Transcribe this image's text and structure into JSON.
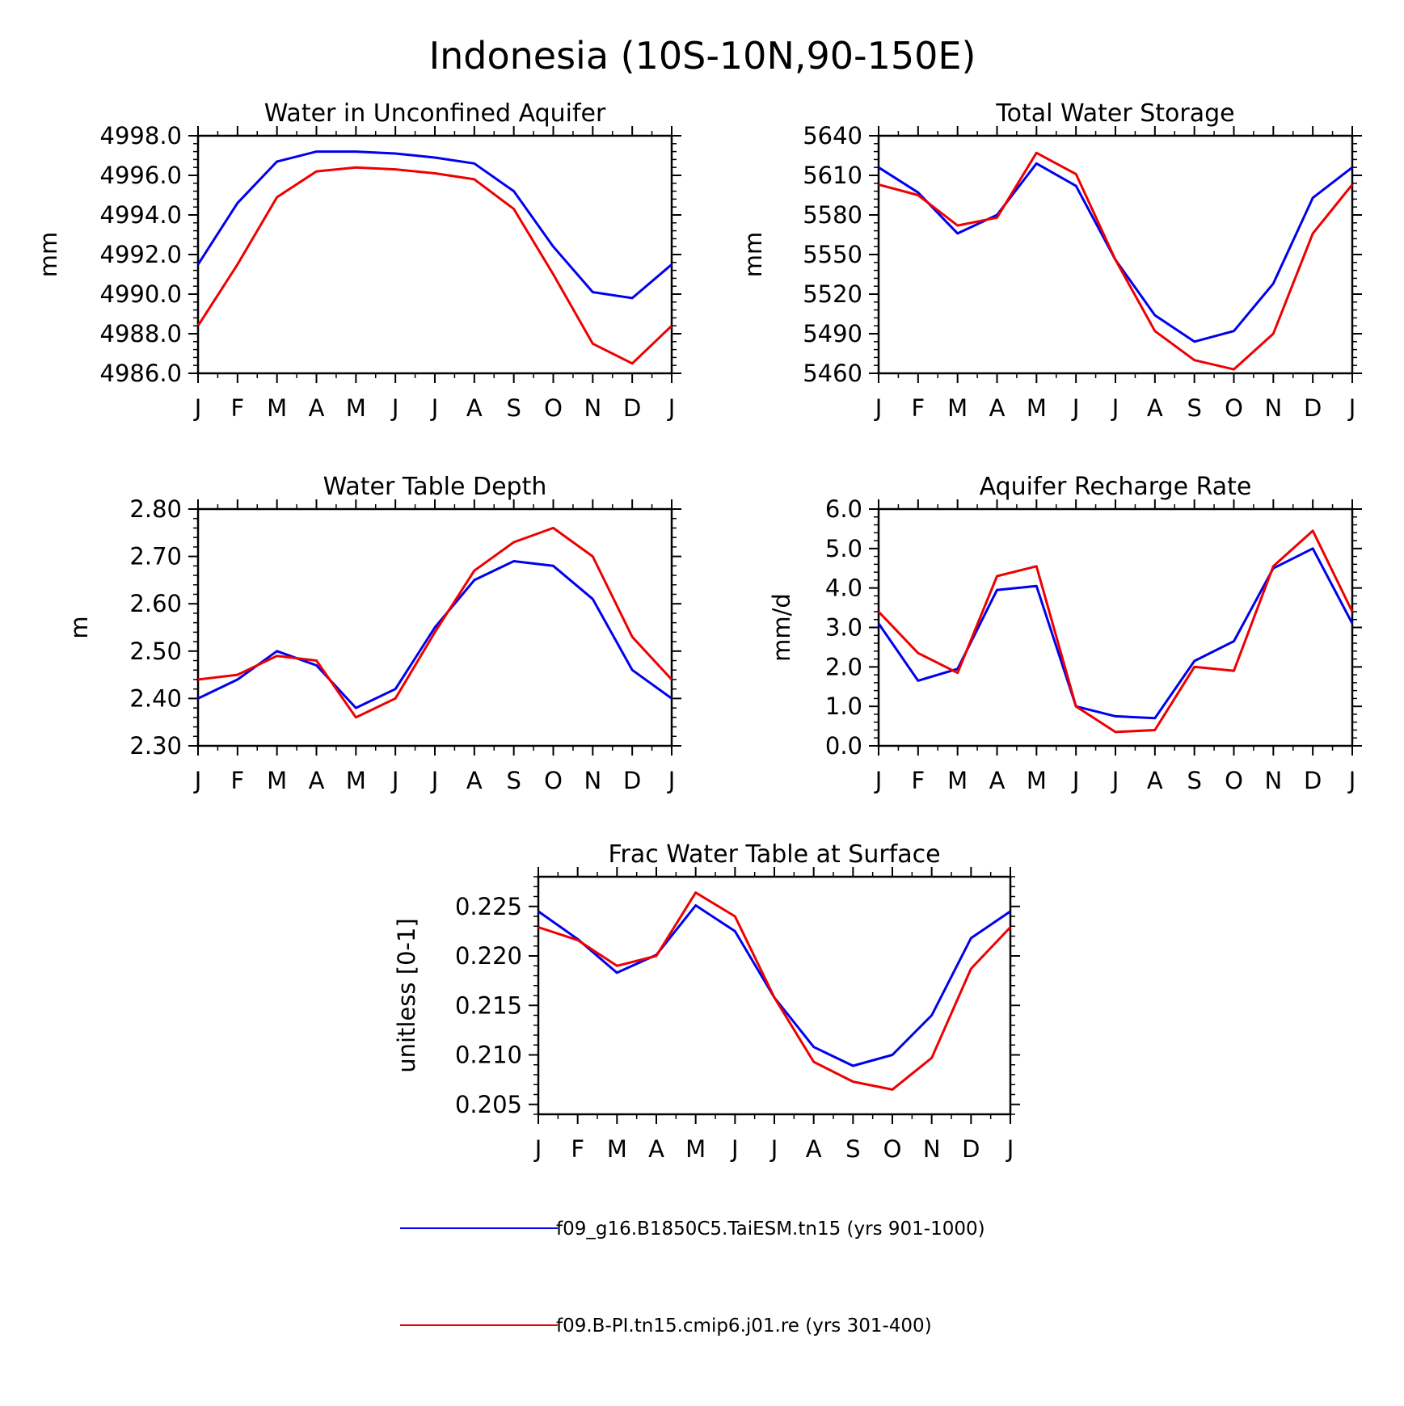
{
  "title": "Indonesia (10S-10N,90-150E)",
  "legend": [
    {
      "label": "f09_g16.B1850C5.TaiESM.tn15 (yrs 901-1000)",
      "color": "#0000ee"
    },
    {
      "label": "f09.B-PI.tn15.cmip6.j01.re (yrs 301-400)",
      "color": "#ee0000"
    }
  ],
  "chart_data": [
    {
      "type": "line",
      "title": "Water in Unconfined Aquifer",
      "ylabel": "mm",
      "x": [
        "J",
        "F",
        "M",
        "A",
        "M",
        "J",
        "J",
        "A",
        "S",
        "O",
        "N",
        "D",
        "J"
      ],
      "ylim": [
        4986.0,
        4998.0
      ],
      "yticks": [
        "4986.0",
        "4988.0",
        "4990.0",
        "4992.0",
        "4994.0",
        "4996.0",
        "4998.0"
      ],
      "series": [
        {
          "name": "f09_g16.B1850C5.TaiESM.tn15 (yrs 901-1000)",
          "color": "#0000ee",
          "values": [
            4991.5,
            4994.6,
            4996.7,
            4997.2,
            4997.2,
            4997.1,
            4996.9,
            4996.6,
            4995.2,
            4992.4,
            4990.1,
            4989.8,
            4991.5
          ]
        },
        {
          "name": "f09.B-PI.tn15.cmip6.j01.re (yrs 301-400)",
          "color": "#ee0000",
          "values": [
            4988.4,
            4991.5,
            4994.9,
            4996.2,
            4996.4,
            4996.3,
            4996.1,
            4995.8,
            4994.3,
            4991.0,
            4987.5,
            4986.5,
            4988.4
          ]
        }
      ]
    },
    {
      "type": "line",
      "title": "Total Water Storage",
      "ylabel": "mm",
      "x": [
        "J",
        "F",
        "M",
        "A",
        "M",
        "J",
        "J",
        "A",
        "S",
        "O",
        "N",
        "D",
        "J"
      ],
      "ylim": [
        5460,
        5640
      ],
      "yticks": [
        "5460",
        "5490",
        "5520",
        "5550",
        "5580",
        "5610",
        "5640"
      ],
      "series": [
        {
          "name": "f09_g16.B1850C5.TaiESM.tn15 (yrs 901-1000)",
          "color": "#0000ee",
          "values": [
            5616,
            5597,
            5566,
            5580,
            5619,
            5602,
            5546,
            5504,
            5484,
            5492,
            5528,
            5593,
            5616
          ]
        },
        {
          "name": "f09.B-PI.tn15.cmip6.j01.re (yrs 301-400)",
          "color": "#ee0000",
          "values": [
            5603,
            5595,
            5572,
            5578,
            5627,
            5611,
            5546,
            5492,
            5470,
            5463,
            5490,
            5566,
            5603
          ]
        }
      ]
    },
    {
      "type": "line",
      "title": "Water Table Depth",
      "ylabel": "m",
      "x": [
        "J",
        "F",
        "M",
        "A",
        "M",
        "J",
        "J",
        "A",
        "S",
        "O",
        "N",
        "D",
        "J"
      ],
      "ylim": [
        2.3,
        2.8
      ],
      "yticks": [
        "2.30",
        "2.40",
        "2.50",
        "2.60",
        "2.70",
        "2.80"
      ],
      "series": [
        {
          "name": "f09_g16.B1850C5.TaiESM.tn15 (yrs 901-1000)",
          "color": "#0000ee",
          "values": [
            2.4,
            2.44,
            2.5,
            2.47,
            2.38,
            2.42,
            2.55,
            2.65,
            2.69,
            2.68,
            2.61,
            2.46,
            2.4
          ]
        },
        {
          "name": "f09.B-PI.tn15.cmip6.j01.re (yrs 301-400)",
          "color": "#ee0000",
          "values": [
            2.44,
            2.45,
            2.49,
            2.48,
            2.36,
            2.4,
            2.54,
            2.67,
            2.73,
            2.76,
            2.7,
            2.53,
            2.44
          ]
        }
      ]
    },
    {
      "type": "line",
      "title": "Aquifer Recharge Rate",
      "ylabel": "mm/d",
      "x": [
        "J",
        "F",
        "M",
        "A",
        "M",
        "J",
        "J",
        "A",
        "S",
        "O",
        "N",
        "D",
        "J"
      ],
      "ylim": [
        0.0,
        6.0
      ],
      "yticks": [
        "0.0",
        "1.0",
        "2.0",
        "3.0",
        "4.0",
        "5.0",
        "6.0"
      ],
      "series": [
        {
          "name": "f09_g16.B1850C5.TaiESM.tn15 (yrs 901-1000)",
          "color": "#0000ee",
          "values": [
            3.1,
            1.65,
            1.95,
            3.95,
            4.05,
            1.0,
            0.75,
            0.7,
            2.15,
            2.65,
            4.5,
            5.0,
            3.1
          ]
        },
        {
          "name": "f09.B-PI.tn15.cmip6.j01.re (yrs 301-400)",
          "color": "#ee0000",
          "values": [
            3.4,
            2.35,
            1.85,
            4.3,
            4.55,
            1.0,
            0.35,
            0.4,
            2.0,
            1.9,
            4.55,
            5.45,
            3.4
          ]
        }
      ]
    },
    {
      "type": "line",
      "title": "Frac Water Table at Surface",
      "ylabel": "unitless [0-1]",
      "x": [
        "J",
        "F",
        "M",
        "A",
        "M",
        "J",
        "J",
        "A",
        "S",
        "O",
        "N",
        "D",
        "J"
      ],
      "ylim": [
        0.204,
        0.228
      ],
      "yticks": [
        "0.205",
        "0.210",
        "0.215",
        "0.220",
        "0.225"
      ],
      "series": [
        {
          "name": "f09_g16.B1850C5.TaiESM.tn15 (yrs 901-1000)",
          "color": "#0000ee",
          "values": [
            0.2245,
            0.2217,
            0.2183,
            0.2201,
            0.2251,
            0.2225,
            0.2158,
            0.2108,
            0.2089,
            0.21,
            0.214,
            0.2218,
            0.2245
          ]
        },
        {
          "name": "f09.B-PI.tn15.cmip6.j01.re (yrs 301-400)",
          "color": "#ee0000",
          "values": [
            0.2229,
            0.2216,
            0.219,
            0.22,
            0.2264,
            0.224,
            0.2158,
            0.2093,
            0.2073,
            0.2065,
            0.2097,
            0.2187,
            0.2229
          ]
        }
      ]
    }
  ]
}
